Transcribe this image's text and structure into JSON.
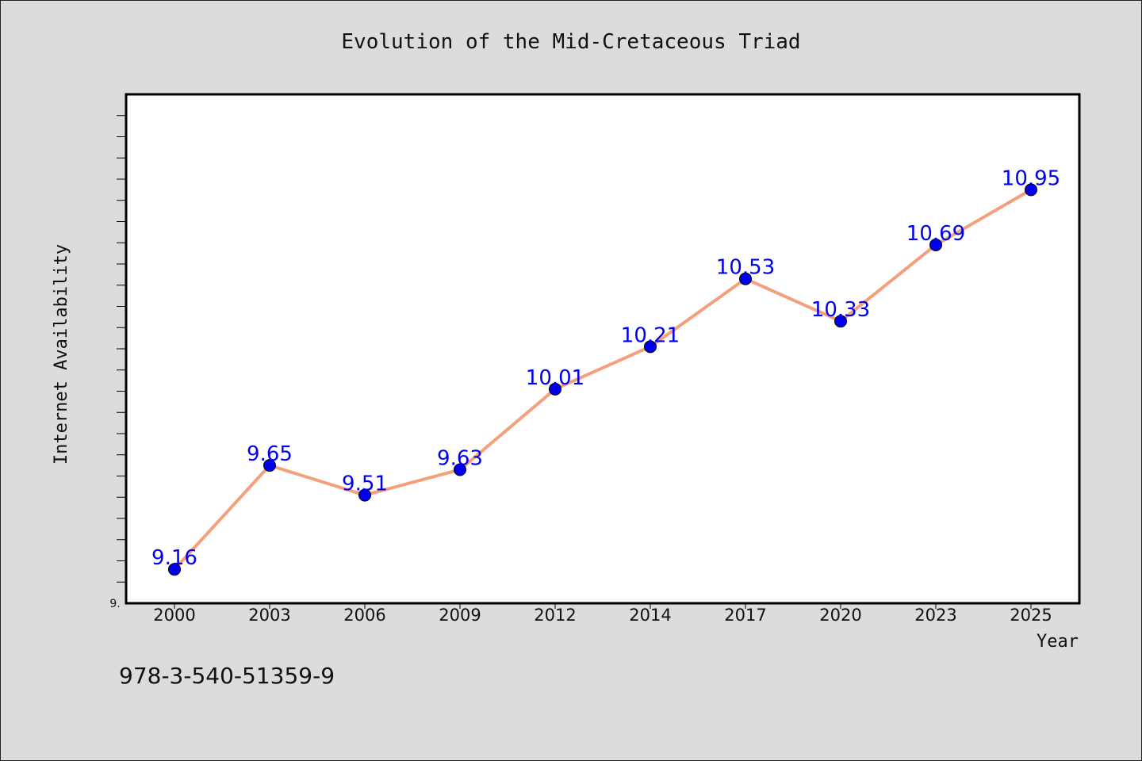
{
  "chart_data": {
    "type": "line",
    "title": "Evolution of the Mid-Cretaceous Triad",
    "xlabel": "Year",
    "ylabel": "Internet Availability",
    "categories": [
      "2000",
      "2003",
      "2006",
      "2009",
      "2012",
      "2014",
      "2017",
      "2020",
      "2023",
      "2025"
    ],
    "series": [
      {
        "values": [
          9.16,
          9.65,
          9.51,
          9.63,
          10.01,
          10.21,
          10.53,
          10.33,
          10.69,
          10.95
        ]
      }
    ],
    "value_labels": [
      "9.16",
      "9.65",
      "9.51",
      "9.63",
      "10.01",
      "10.21",
      "10.53",
      "10.33",
      "10.69",
      "10.95"
    ],
    "ylim": [
      9.0,
      11.4
    ],
    "y_tick_label": "9.",
    "grid": false,
    "line_color": "#f4a07c",
    "marker_color": "#0000ee",
    "label_color": "#0000ee",
    "background": "#dcdcdc",
    "plot_background": "#ffffff"
  },
  "footer": {
    "isbn": "978-3-540-51359-9"
  }
}
